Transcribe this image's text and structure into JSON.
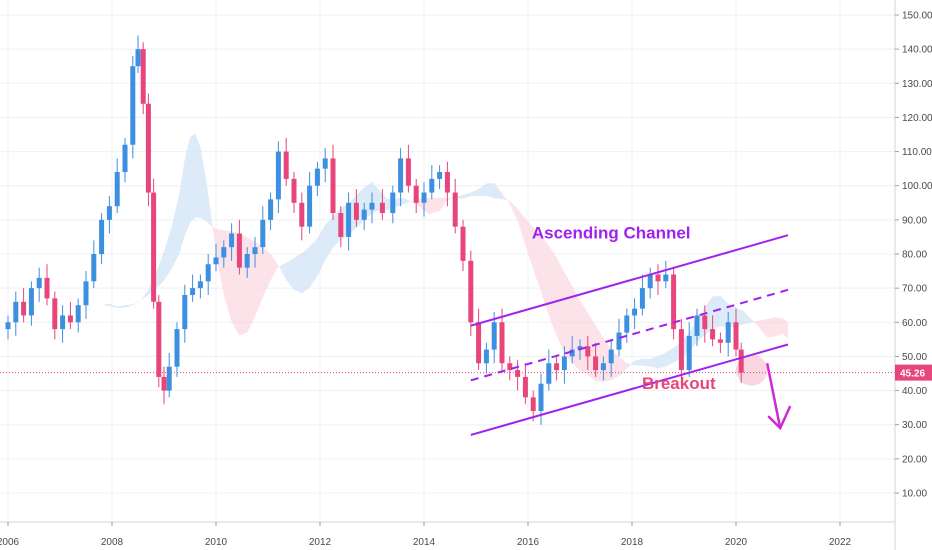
{
  "chart_data": {
    "type": "candlestick",
    "title": "",
    "xlabel": "",
    "ylabel": "",
    "x_range": [
      2006,
      2023
    ],
    "ylim": [
      0,
      155
    ],
    "y_ticks": [
      10,
      20,
      30,
      40,
      50,
      60,
      70,
      80,
      90,
      100,
      110,
      120,
      130,
      140,
      150
    ],
    "y_tick_labels": [
      "10.00",
      "20.00",
      "30.00",
      "40.00",
      "50.00",
      "60.00",
      "70.00",
      "80.00",
      "90.00",
      "100.00",
      "110.00",
      "120.00",
      "130.00",
      "140.00",
      "150.00"
    ],
    "x_ticks": [
      2006,
      2008,
      2010,
      2012,
      2014,
      2016,
      2018,
      2020,
      2022
    ],
    "x_tick_labels": [
      "2006",
      "2008",
      "2010",
      "2012",
      "2014",
      "2016",
      "2018",
      "2020",
      "2022"
    ],
    "grid": true,
    "colors": {
      "up": "#3d8fe0",
      "down": "#e8457a",
      "channel": "#a020f0",
      "breakout": "#e8457a",
      "cloud_bull": "#cfe3f7",
      "cloud_bear": "#fbd5df",
      "price_line": "#e8457a"
    },
    "last_price": {
      "label": "45.26",
      "value": 45.26
    },
    "closes": [
      {
        "x": 2006.0,
        "c": 60
      },
      {
        "x": 2006.15,
        "c": 66
      },
      {
        "x": 2006.3,
        "c": 62
      },
      {
        "x": 2006.45,
        "c": 70
      },
      {
        "x": 2006.6,
        "c": 73
      },
      {
        "x": 2006.75,
        "c": 67
      },
      {
        "x": 2006.9,
        "c": 58
      },
      {
        "x": 2007.05,
        "c": 62
      },
      {
        "x": 2007.2,
        "c": 60
      },
      {
        "x": 2007.35,
        "c": 65
      },
      {
        "x": 2007.5,
        "c": 72
      },
      {
        "x": 2007.65,
        "c": 80
      },
      {
        "x": 2007.8,
        "c": 90
      },
      {
        "x": 2007.95,
        "c": 94
      },
      {
        "x": 2008.1,
        "c": 104
      },
      {
        "x": 2008.25,
        "c": 112
      },
      {
        "x": 2008.4,
        "c": 135
      },
      {
        "x": 2008.5,
        "c": 140
      },
      {
        "x": 2008.6,
        "c": 124
      },
      {
        "x": 2008.7,
        "c": 98
      },
      {
        "x": 2008.8,
        "c": 66
      },
      {
        "x": 2008.9,
        "c": 44
      },
      {
        "x": 2009.0,
        "c": 40
      },
      {
        "x": 2009.1,
        "c": 47
      },
      {
        "x": 2009.25,
        "c": 58
      },
      {
        "x": 2009.4,
        "c": 68
      },
      {
        "x": 2009.55,
        "c": 70
      },
      {
        "x": 2009.7,
        "c": 72
      },
      {
        "x": 2009.85,
        "c": 77
      },
      {
        "x": 2010.0,
        "c": 79
      },
      {
        "x": 2010.15,
        "c": 82
      },
      {
        "x": 2010.3,
        "c": 86
      },
      {
        "x": 2010.45,
        "c": 76
      },
      {
        "x": 2010.6,
        "c": 80
      },
      {
        "x": 2010.75,
        "c": 82
      },
      {
        "x": 2010.9,
        "c": 90
      },
      {
        "x": 2011.05,
        "c": 96
      },
      {
        "x": 2011.2,
        "c": 110
      },
      {
        "x": 2011.35,
        "c": 102
      },
      {
        "x": 2011.5,
        "c": 95
      },
      {
        "x": 2011.65,
        "c": 88
      },
      {
        "x": 2011.8,
        "c": 100
      },
      {
        "x": 2011.95,
        "c": 105
      },
      {
        "x": 2012.1,
        "c": 108
      },
      {
        "x": 2012.25,
        "c": 92
      },
      {
        "x": 2012.4,
        "c": 85
      },
      {
        "x": 2012.55,
        "c": 95
      },
      {
        "x": 2012.7,
        "c": 90
      },
      {
        "x": 2012.85,
        "c": 93
      },
      {
        "x": 2013.0,
        "c": 95
      },
      {
        "x": 2013.2,
        "c": 92
      },
      {
        "x": 2013.4,
        "c": 98
      },
      {
        "x": 2013.55,
        "c": 108
      },
      {
        "x": 2013.7,
        "c": 100
      },
      {
        "x": 2013.85,
        "c": 95
      },
      {
        "x": 2014.0,
        "c": 98
      },
      {
        "x": 2014.15,
        "c": 102
      },
      {
        "x": 2014.3,
        "c": 104
      },
      {
        "x": 2014.45,
        "c": 98
      },
      {
        "x": 2014.6,
        "c": 88
      },
      {
        "x": 2014.75,
        "c": 78
      },
      {
        "x": 2014.9,
        "c": 60
      },
      {
        "x": 2015.05,
        "c": 48
      },
      {
        "x": 2015.2,
        "c": 52
      },
      {
        "x": 2015.35,
        "c": 60
      },
      {
        "x": 2015.5,
        "c": 48
      },
      {
        "x": 2015.65,
        "c": 46
      },
      {
        "x": 2015.8,
        "c": 44
      },
      {
        "x": 2015.95,
        "c": 38
      },
      {
        "x": 2016.1,
        "c": 34
      },
      {
        "x": 2016.25,
        "c": 42
      },
      {
        "x": 2016.4,
        "c": 48
      },
      {
        "x": 2016.55,
        "c": 46
      },
      {
        "x": 2016.7,
        "c": 50
      },
      {
        "x": 2016.85,
        "c": 52
      },
      {
        "x": 2017.0,
        "c": 53
      },
      {
        "x": 2017.15,
        "c": 50
      },
      {
        "x": 2017.3,
        "c": 46
      },
      {
        "x": 2017.45,
        "c": 48
      },
      {
        "x": 2017.6,
        "c": 52
      },
      {
        "x": 2017.75,
        "c": 57
      },
      {
        "x": 2017.9,
        "c": 62
      },
      {
        "x": 2018.05,
        "c": 64
      },
      {
        "x": 2018.2,
        "c": 70
      },
      {
        "x": 2018.35,
        "c": 74
      },
      {
        "x": 2018.5,
        "c": 72
      },
      {
        "x": 2018.65,
        "c": 74
      },
      {
        "x": 2018.8,
        "c": 58
      },
      {
        "x": 2018.95,
        "c": 46
      },
      {
        "x": 2019.1,
        "c": 56
      },
      {
        "x": 2019.25,
        "c": 62
      },
      {
        "x": 2019.4,
        "c": 58
      },
      {
        "x": 2019.55,
        "c": 55
      },
      {
        "x": 2019.7,
        "c": 54
      },
      {
        "x": 2019.85,
        "c": 60
      },
      {
        "x": 2020.0,
        "c": 52
      },
      {
        "x": 2020.1,
        "c": 45.26
      }
    ],
    "annotations": [
      {
        "text": "Ascending Channel",
        "x": 2017.6,
        "y": 84.5,
        "color": "#a020f0"
      },
      {
        "text": "Breakout",
        "x": 2018.9,
        "y": 40.5,
        "color": "#e8457a"
      }
    ],
    "channel_lines": [
      {
        "style": "solid",
        "from": [
          2014.9,
          59
        ],
        "to": [
          2021.0,
          85.5
        ]
      },
      {
        "style": "dashed",
        "from": [
          2014.9,
          43
        ],
        "to": [
          2021.0,
          69.5
        ]
      },
      {
        "style": "solid",
        "from": [
          2014.9,
          27
        ],
        "to": [
          2021.0,
          53.5
        ]
      }
    ],
    "arrow": {
      "from": [
        2020.6,
        48
      ],
      "to": [
        2020.85,
        29
      ]
    },
    "breakout_circle": {
      "center": [
        2020.3,
        46
      ],
      "radius_years": 0.3
    }
  }
}
